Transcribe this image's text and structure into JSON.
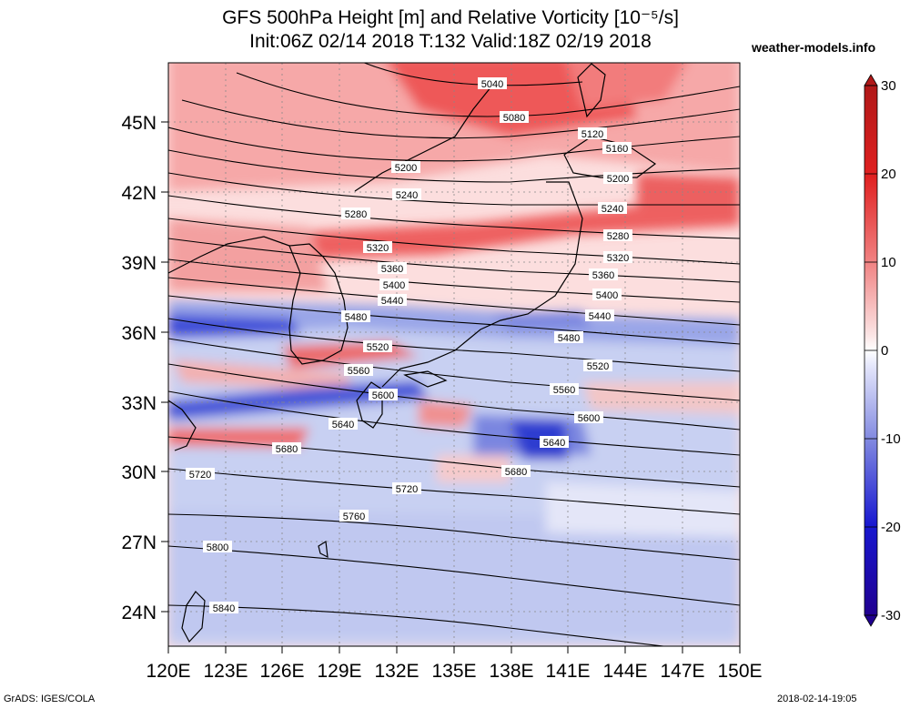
{
  "title": {
    "line1": "GFS 500hPa Height [m] and Relative Vorticity [10⁻⁵/s]",
    "line2": "Init:06Z 02/14 2018 T:132 Valid:18Z 02/19 2018"
  },
  "site": "weather-models.info",
  "footer": {
    "left": "GrADS: IGES/COLA",
    "right": "2018-02-14-19:05"
  },
  "colorbar": {
    "ticks": [
      "30",
      "20",
      "10",
      "0",
      "-10",
      "-20",
      "-30"
    ],
    "colors": [
      "#b01818",
      "#e02020",
      "#f08080",
      "#ffffff",
      "#8088e0",
      "#1818d0",
      "#200090"
    ]
  },
  "map": {
    "lat_labels": [
      "45N",
      "42N",
      "39N",
      "36N",
      "33N",
      "30N",
      "27N",
      "24N"
    ],
    "lon_labels": [
      "120E",
      "123E",
      "126E",
      "129E",
      "132E",
      "135E",
      "138E",
      "141E",
      "144E",
      "147E",
      "150E"
    ],
    "contour_labels": [
      "5040",
      "5080",
      "5120",
      "5160",
      "5200",
      "5200",
      "5240",
      "5240",
      "5280",
      "5280",
      "5320",
      "5320",
      "5360",
      "5360",
      "5400",
      "5400",
      "5440",
      "5440",
      "5480",
      "5480",
      "5520",
      "5520",
      "5560",
      "5560",
      "5600",
      "5600",
      "5640",
      "5640",
      "5680",
      "5680",
      "5720",
      "5720",
      "5760",
      "5800",
      "5840"
    ]
  }
}
